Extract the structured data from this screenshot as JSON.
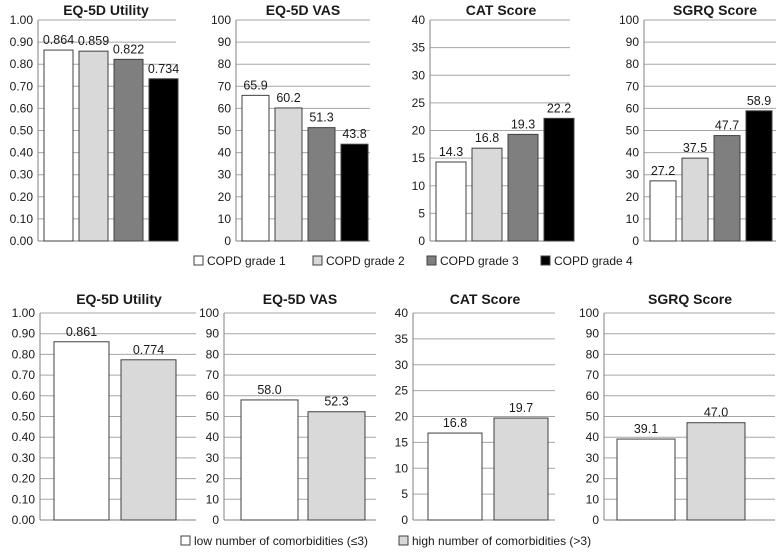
{
  "chart_data": [
    {
      "type": "bar",
      "group": "row1",
      "title": "EQ-5D Utility",
      "categories": [
        "COPD grade 1",
        "COPD grade 2",
        "COPD grade 3",
        "COPD grade 4"
      ],
      "values": [
        0.864,
        0.859,
        0.822,
        0.734
      ],
      "value_labels": [
        "0.864",
        "0.859",
        "0.822",
        "0.734"
      ],
      "colors": [
        "#ffffff",
        "#d9d9d9",
        "#7f7f7f",
        "#000000"
      ],
      "ylim": [
        0,
        1
      ],
      "yticks": [
        "0.00",
        "0.10",
        "0.20",
        "0.30",
        "0.40",
        "0.50",
        "0.60",
        "0.70",
        "0.80",
        "0.90",
        "1.00"
      ],
      "grid": true
    },
    {
      "type": "bar",
      "group": "row1",
      "title": "EQ-5D VAS",
      "categories": [
        "COPD grade 1",
        "COPD grade 2",
        "COPD grade 3",
        "COPD grade 4"
      ],
      "values": [
        65.9,
        60.2,
        51.3,
        43.8
      ],
      "value_labels": [
        "65.9",
        "60.2",
        "51.3",
        "43.8"
      ],
      "colors": [
        "#ffffff",
        "#d9d9d9",
        "#7f7f7f",
        "#000000"
      ],
      "ylim": [
        0,
        100
      ],
      "yticks": [
        "0",
        "10",
        "20",
        "30",
        "40",
        "50",
        "60",
        "70",
        "80",
        "90",
        "100"
      ],
      "grid": true
    },
    {
      "type": "bar",
      "group": "row1",
      "title": "CAT Score",
      "categories": [
        "COPD grade 1",
        "COPD grade 2",
        "COPD grade 3",
        "COPD grade 4"
      ],
      "values": [
        14.3,
        16.8,
        19.3,
        22.2
      ],
      "value_labels": [
        "14.3",
        "16.8",
        "19.3",
        "22.2"
      ],
      "colors": [
        "#ffffff",
        "#d9d9d9",
        "#7f7f7f",
        "#000000"
      ],
      "ylim": [
        0,
        40
      ],
      "yticks": [
        "0",
        "5",
        "10",
        "15",
        "20",
        "25",
        "30",
        "35",
        "40"
      ],
      "grid": true
    },
    {
      "type": "bar",
      "group": "row1",
      "title": "SGRQ Score",
      "categories": [
        "COPD grade 1",
        "COPD grade 2",
        "COPD grade 3",
        "COPD grade 4"
      ],
      "values": [
        27.2,
        37.5,
        47.7,
        58.9
      ],
      "value_labels": [
        "27.2",
        "37.5",
        "47.7",
        "58.9"
      ],
      "colors": [
        "#ffffff",
        "#d9d9d9",
        "#7f7f7f",
        "#000000"
      ],
      "ylim": [
        0,
        100
      ],
      "yticks": [
        "0",
        "10",
        "20",
        "30",
        "40",
        "50",
        "60",
        "70",
        "80",
        "90",
        "100"
      ],
      "grid": true
    },
    {
      "type": "bar",
      "group": "row2",
      "title": "EQ-5D Utility",
      "categories": [
        "low number of comorbidities (≤3)",
        "high number of comorbidities (>3)"
      ],
      "values": [
        0.861,
        0.774
      ],
      "value_labels": [
        "0.861",
        "0.774"
      ],
      "colors": [
        "#ffffff",
        "#d9d9d9"
      ],
      "ylim": [
        0,
        1
      ],
      "yticks": [
        "0.00",
        "0.10",
        "0.20",
        "0.30",
        "0.40",
        "0.50",
        "0.60",
        "0.70",
        "0.80",
        "0.90",
        "1.00"
      ],
      "grid": true
    },
    {
      "type": "bar",
      "group": "row2",
      "title": "EQ-5D VAS",
      "categories": [
        "low number of comorbidities (≤3)",
        "high number of comorbidities (>3)"
      ],
      "values": [
        58.0,
        52.3
      ],
      "value_labels": [
        "58.0",
        "52.3"
      ],
      "colors": [
        "#ffffff",
        "#d9d9d9"
      ],
      "ylim": [
        0,
        100
      ],
      "yticks": [
        "0",
        "10",
        "20",
        "30",
        "40",
        "50",
        "60",
        "70",
        "80",
        "90",
        "100"
      ],
      "grid": true
    },
    {
      "type": "bar",
      "group": "row2",
      "title": "CAT Score",
      "categories": [
        "low number of comorbidities (≤3)",
        "high number of comorbidities (>3)"
      ],
      "values": [
        16.8,
        19.7
      ],
      "value_labels": [
        "16.8",
        "19.7"
      ],
      "colors": [
        "#ffffff",
        "#d9d9d9"
      ],
      "ylim": [
        0,
        40
      ],
      "yticks": [
        "0",
        "5",
        "10",
        "15",
        "20",
        "25",
        "30",
        "35",
        "40"
      ],
      "grid": true
    },
    {
      "type": "bar",
      "group": "row2",
      "title": "SGRQ Score",
      "categories": [
        "low number of comorbidities (≤3)",
        "high number of comorbidities (>3)"
      ],
      "values": [
        39.1,
        47.0
      ],
      "value_labels": [
        "39.1",
        "47.0"
      ],
      "colors": [
        "#ffffff",
        "#d9d9d9"
      ],
      "ylim": [
        0,
        100
      ],
      "yticks": [
        "0",
        "10",
        "20",
        "30",
        "40",
        "50",
        "60",
        "70",
        "80",
        "90",
        "100"
      ],
      "grid": true
    }
  ],
  "legends": [
    {
      "group": "row1",
      "entries": [
        {
          "label": "COPD grade 1",
          "color": "#ffffff"
        },
        {
          "label": "COPD grade 2",
          "color": "#d9d9d9"
        },
        {
          "label": "COPD grade 3",
          "color": "#7f7f7f"
        },
        {
          "label": "COPD grade 4",
          "color": "#000000"
        }
      ]
    },
    {
      "group": "row2",
      "entries": [
        {
          "label": "low number of comorbidities (≤3)",
          "color": "#ffffff"
        },
        {
          "label": "high number of comorbidities (>3)",
          "color": "#d9d9d9"
        }
      ]
    }
  ],
  "style": {
    "gridline_color": "#a6a6a6",
    "axis_color": "#808080",
    "bar_outline": "#404040"
  }
}
